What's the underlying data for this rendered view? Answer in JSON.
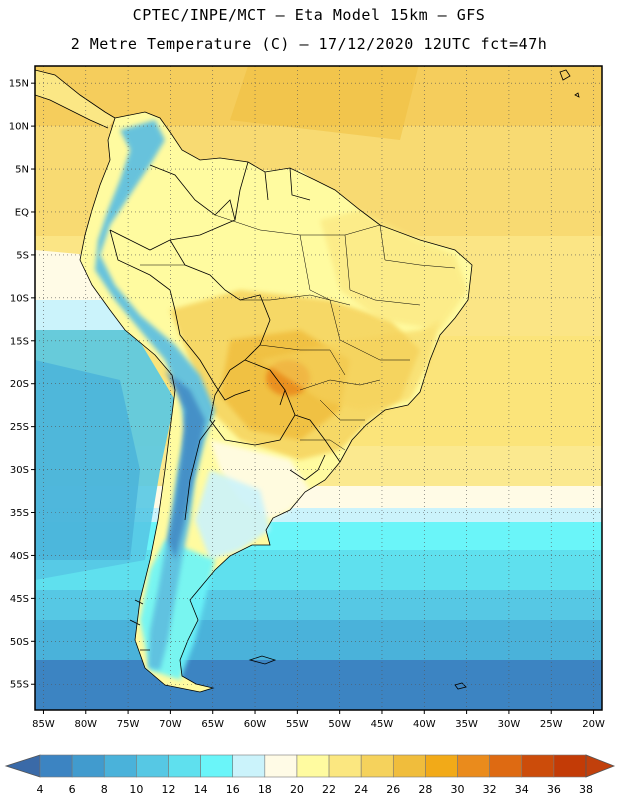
{
  "header": {
    "title_line1": "CPTEC/INPE/MCT –  Eta Model 15km – GFS",
    "title_line2": "2 Metre Temperature (C) – 17/12/2020 12UTC fct=47h"
  },
  "map": {
    "lon_range": [
      -86,
      -19
    ],
    "lat_range": [
      -58,
      17
    ],
    "lat_ticks": [
      {
        "value": 15,
        "label": "15N"
      },
      {
        "value": 10,
        "label": "10N"
      },
      {
        "value": 5,
        "label": "5N"
      },
      {
        "value": 0,
        "label": "EQ"
      },
      {
        "value": -5,
        "label": "5S"
      },
      {
        "value": -10,
        "label": "10S"
      },
      {
        "value": -15,
        "label": "15S"
      },
      {
        "value": -20,
        "label": "20S"
      },
      {
        "value": -25,
        "label": "25S"
      },
      {
        "value": -30,
        "label": "30S"
      },
      {
        "value": -35,
        "label": "35S"
      },
      {
        "value": -40,
        "label": "40S"
      },
      {
        "value": -45,
        "label": "45S"
      },
      {
        "value": -50,
        "label": "50S"
      },
      {
        "value": -55,
        "label": "55S"
      }
    ],
    "lon_ticks": [
      {
        "value": -85,
        "label": "85W"
      },
      {
        "value": -80,
        "label": "80W"
      },
      {
        "value": -75,
        "label": "75W"
      },
      {
        "value": -70,
        "label": "70W"
      },
      {
        "value": -65,
        "label": "65W"
      },
      {
        "value": -60,
        "label": "60W"
      },
      {
        "value": -55,
        "label": "55W"
      },
      {
        "value": -50,
        "label": "50W"
      },
      {
        "value": -45,
        "label": "45W"
      },
      {
        "value": -40,
        "label": "40W"
      },
      {
        "value": -35,
        "label": "35W"
      },
      {
        "value": -30,
        "label": "30W"
      },
      {
        "value": -25,
        "label": "25W"
      },
      {
        "value": -20,
        "label": "20W"
      }
    ],
    "grid": "dotted"
  },
  "colorbar": {
    "levels": [
      {
        "label": "4",
        "color": "#3a73b3"
      },
      {
        "label": "6",
        "color": "#3c84c2"
      },
      {
        "label": "8",
        "color": "#419bce"
      },
      {
        "label": "10",
        "color": "#4ab2da"
      },
      {
        "label": "12",
        "color": "#56c8e4"
      },
      {
        "label": "14",
        "color": "#5fe0ee"
      },
      {
        "label": "16",
        "color": "#6af5f9"
      },
      {
        "label": "18",
        "color": "#cbf3fb"
      },
      {
        "label": "20",
        "color": "#fffbe6"
      },
      {
        "label": "22",
        "color": "#fffba0"
      },
      {
        "label": "24",
        "color": "#fbe780"
      },
      {
        "label": "26",
        "color": "#f5d25c"
      },
      {
        "label": "28",
        "color": "#f0bd3c"
      },
      {
        "label": "30",
        "color": "#f2aa18"
      },
      {
        "label": "32",
        "color": "#ea8b1c"
      },
      {
        "label": "34",
        "color": "#de6a12"
      },
      {
        "label": "36",
        "color": "#cc4c0a"
      },
      {
        "label": "38",
        "color": "#c33b06"
      }
    ],
    "low_end_color": "#3a6aa8",
    "high_end_color": "#c1400c"
  },
  "colors": {
    "ocean_north": "#f5cd5c",
    "ocean_mid": "#fffbe6",
    "ocean_south": "#3c84c2",
    "land": "#fffba0",
    "andes": "#5fc0e0",
    "hotspot": "#ea8b1c"
  }
}
